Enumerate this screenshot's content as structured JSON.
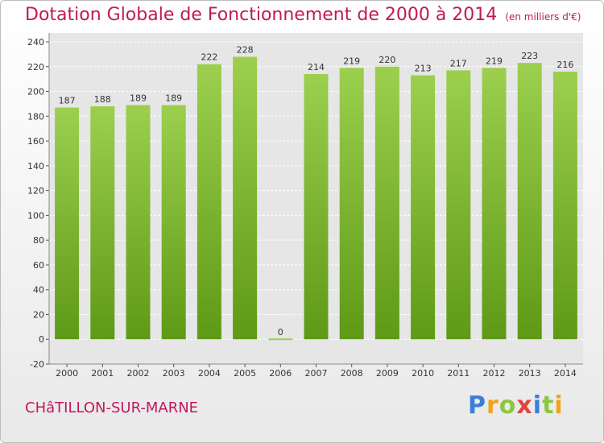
{
  "chart_data": {
    "type": "bar",
    "title": "Dotation Globale de Fonctionnement de 2000 à 2014",
    "subtitle": "(en milliers d'€)",
    "categories": [
      "2000",
      "2001",
      "2002",
      "2003",
      "2004",
      "2005",
      "2006",
      "2007",
      "2008",
      "2009",
      "2010",
      "2011",
      "2012",
      "2013",
      "2014"
    ],
    "values": [
      187,
      188,
      189,
      189,
      222,
      228,
      0,
      214,
      219,
      220,
      213,
      217,
      219,
      223,
      216
    ],
    "ylim": [
      -20,
      240
    ],
    "yticks": [
      -20,
      0,
      20,
      40,
      60,
      80,
      100,
      120,
      140,
      160,
      180,
      200,
      220,
      240
    ],
    "grid": true,
    "colors": {
      "bar_top": "#9ccf4e",
      "bar_bottom": "#5e9a16",
      "title": "#c2185b"
    }
  },
  "footer": {
    "commune": "CHâTILLON-SUR-MARNE",
    "brand": "Proxiti"
  }
}
